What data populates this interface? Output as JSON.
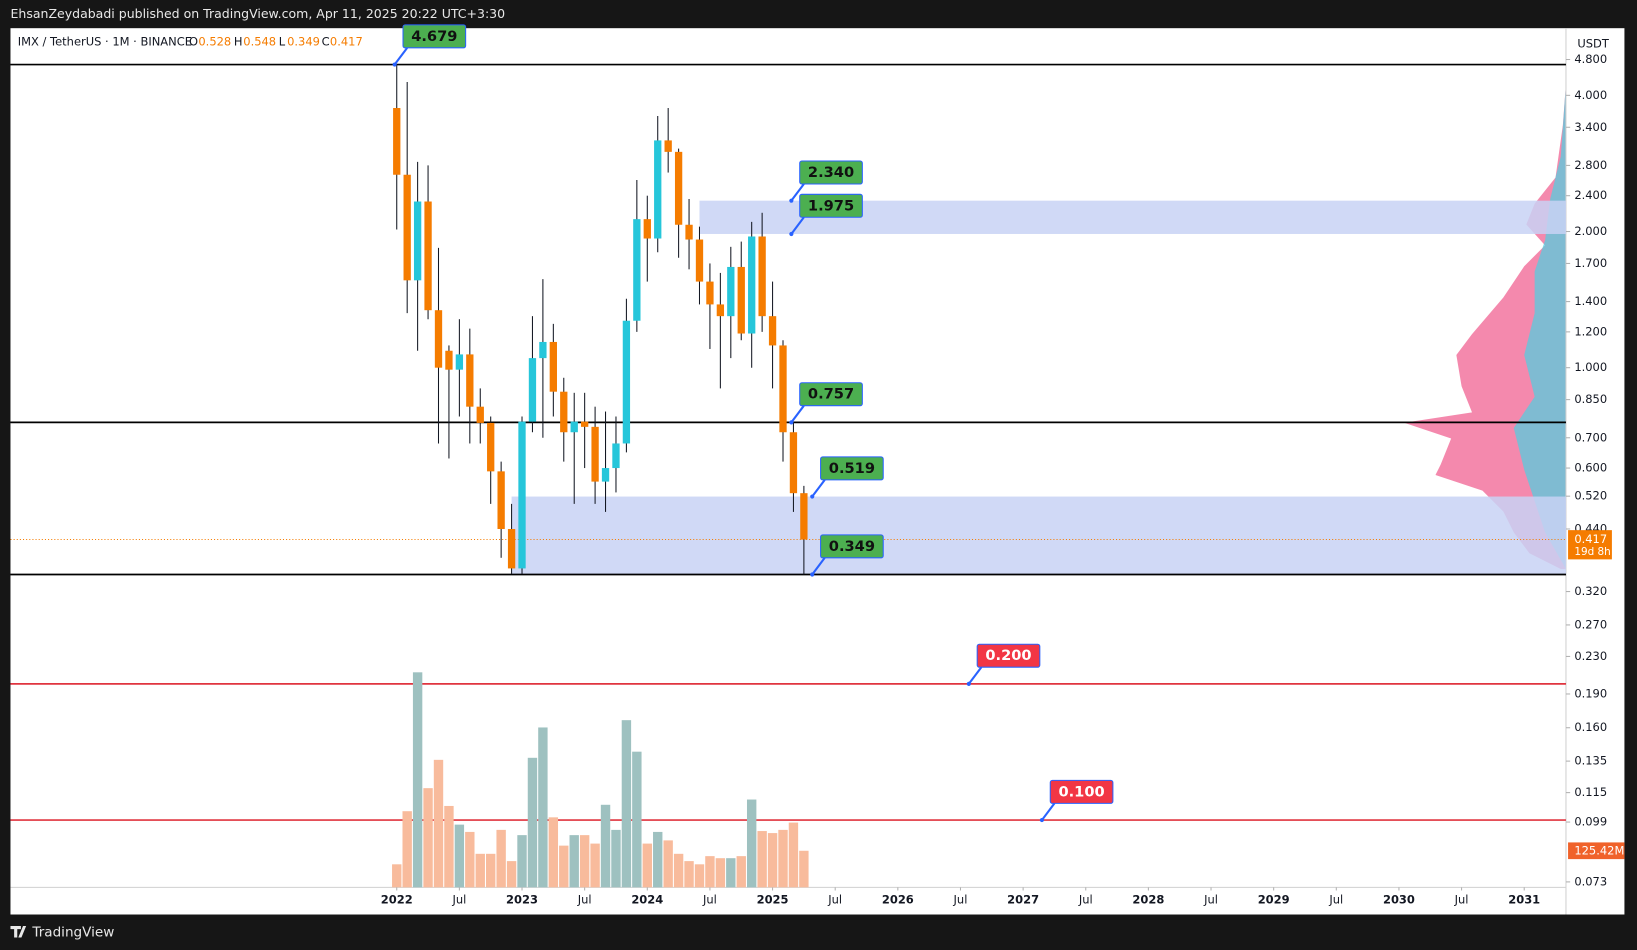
{
  "header": {
    "publisher": "EhsanZeydabadi published on TradingView.com, Apr 11, 2025 20:22 UTC+3:30"
  },
  "footer": {
    "brand": "TradingView"
  },
  "chart_data": {
    "type": "candlestick",
    "symbol": "IMX / TetherUS · 1M · BINANCE",
    "ohlc_letters": [
      "O",
      "H",
      "L",
      "C"
    ],
    "currency": "USDT",
    "countdown": "19d 8h",
    "x": [
      "2022-01",
      "2022-02",
      "2022-03",
      "2022-04",
      "2022-05",
      "2022-06",
      "2022-07",
      "2022-08",
      "2022-09",
      "2022-10",
      "2022-11",
      "2022-12",
      "2023-01",
      "2023-02",
      "2023-03",
      "2023-04",
      "2023-05",
      "2023-06",
      "2023-07",
      "2023-08",
      "2023-09",
      "2023-10",
      "2023-11",
      "2023-12",
      "2024-01",
      "2024-02",
      "2024-03",
      "2024-04",
      "2024-05",
      "2024-06",
      "2024-07",
      "2024-08",
      "2024-09",
      "2024-10",
      "2024-11",
      "2024-12",
      "2025-01",
      "2025-02",
      "2025-03",
      "2025-04"
    ],
    "open": [
      3.75,
      2.67,
      1.56,
      2.33,
      1.34,
      1.09,
      0.99,
      1.07,
      0.82,
      0.755,
      0.59,
      0.44,
      0.36,
      0.76,
      1.05,
      1.14,
      0.885,
      0.72,
      0.76,
      0.74,
      0.56,
      0.6,
      0.68,
      1.27,
      2.13,
      1.93,
      3.18,
      3.0,
      2.07,
      1.92,
      1.55,
      1.38,
      1.3,
      1.67,
      1.19,
      1.95,
      1.3,
      1.12,
      0.72,
      0.528
    ],
    "high": [
      4.679,
      4.28,
      2.85,
      2.8,
      1.84,
      1.12,
      1.28,
      1.22,
      0.9,
      0.78,
      0.62,
      0.5,
      0.78,
      1.3,
      1.57,
      1.25,
      0.95,
      0.88,
      0.88,
      0.82,
      0.8,
      0.78,
      1.42,
      2.6,
      2.4,
      3.6,
      3.75,
      3.05,
      2.36,
      2.05,
      1.7,
      1.62,
      1.85,
      1.9,
      2.1,
      2.2,
      1.55,
      1.15,
      0.757,
      0.548
    ],
    "low": [
      2.02,
      1.32,
      1.09,
      1.28,
      0.68,
      0.63,
      0.78,
      0.68,
      0.68,
      0.5,
      0.38,
      0.35,
      0.35,
      0.72,
      0.7,
      0.78,
      0.62,
      0.5,
      0.6,
      0.5,
      0.48,
      0.53,
      0.65,
      1.2,
      1.55,
      1.8,
      2.7,
      1.75,
      1.65,
      1.38,
      1.1,
      0.9,
      1.05,
      1.15,
      1.0,
      1.2,
      0.9,
      0.62,
      0.48,
      0.349
    ],
    "close": [
      2.67,
      1.56,
      2.33,
      1.34,
      1.0,
      0.99,
      1.07,
      0.82,
      0.755,
      0.59,
      0.44,
      0.36,
      0.76,
      1.05,
      1.14,
      0.885,
      0.72,
      0.76,
      0.74,
      0.56,
      0.6,
      0.68,
      1.27,
      2.13,
      1.93,
      3.18,
      3.0,
      2.07,
      1.92,
      1.55,
      1.38,
      1.3,
      1.67,
      1.19,
      1.95,
      1.3,
      1.12,
      0.72,
      0.528,
      0.417
    ],
    "volume": [
      79,
      261,
      737,
      340,
      437,
      279,
      215,
      190,
      115,
      115,
      197,
      90,
      179,
      444,
      548,
      240,
      143,
      179,
      179,
      150,
      283,
      197,
      573,
      465,
      150,
      190,
      161,
      115,
      90,
      79,
      107,
      100,
      100,
      107,
      301,
      193,
      186,
      197,
      222,
      125.42
    ],
    "volume_label": "125.42M",
    "up_color": "#26c6da",
    "down_color": "#f57c00",
    "volume_up_color": "#9ec1c0",
    "volume_down_color": "#f8bb9c",
    "log_scale": true,
    "xlim": [
      "2018-12",
      "2031-05"
    ],
    "xticks": [
      {
        "value": "2022-01",
        "label": "2022"
      },
      {
        "value": "2022-07",
        "label": "Jul"
      },
      {
        "value": "2023-01",
        "label": "2023"
      },
      {
        "value": "2023-07",
        "label": "Jul"
      },
      {
        "value": "2024-01",
        "label": "2024"
      },
      {
        "value": "2024-07",
        "label": "Jul"
      },
      {
        "value": "2025-01",
        "label": "2025"
      },
      {
        "value": "2025-07",
        "label": "Jul"
      },
      {
        "value": "2026-01",
        "label": "2026"
      },
      {
        "value": "2026-07",
        "label": "Jul"
      },
      {
        "value": "2027-01",
        "label": "2027"
      },
      {
        "value": "2027-07",
        "label": "Jul"
      },
      {
        "value": "2028-01",
        "label": "2028"
      },
      {
        "value": "2028-07",
        "label": "Jul"
      },
      {
        "value": "2029-01",
        "label": "2029"
      },
      {
        "value": "2029-07",
        "label": "Jul"
      },
      {
        "value": "2030-01",
        "label": "2030"
      },
      {
        "value": "2030-07",
        "label": "Jul"
      },
      {
        "value": "2031-01",
        "label": "2031"
      }
    ],
    "ylim": [
      0.071,
      5.6
    ],
    "yticks": [
      {
        "value": 4.8,
        "label": "4.800"
      },
      {
        "value": 4,
        "label": "4.000"
      },
      {
        "value": 3.4,
        "label": "3.400"
      },
      {
        "value": 2.8,
        "label": "2.800"
      },
      {
        "value": 2.4,
        "label": "2.400"
      },
      {
        "value": 2,
        "label": "2.000"
      },
      {
        "value": 1.7,
        "label": "1.700"
      },
      {
        "value": 1.4,
        "label": "1.400"
      },
      {
        "value": 1.2,
        "label": "1.200"
      },
      {
        "value": 1,
        "label": "1.000"
      },
      {
        "value": 0.85,
        "label": "0.850"
      },
      {
        "value": 0.7,
        "label": "0.700"
      },
      {
        "value": 0.6,
        "label": "0.600"
      },
      {
        "value": 0.52,
        "label": "0.520"
      },
      {
        "value": 0.44,
        "label": "0.440"
      },
      {
        "value": 0.32,
        "label": "0.320"
      },
      {
        "value": 0.27,
        "label": "0.270"
      },
      {
        "value": 0.23,
        "label": "0.230"
      },
      {
        "value": 0.19,
        "label": "0.190"
      },
      {
        "value": 0.16,
        "label": "0.160"
      },
      0.135,
      0.115,
      0.099,
      0.073
    ],
    "levels": [
      {
        "value": 4.679,
        "label": "4.679",
        "color": "#4caf50",
        "line": "#000000"
      },
      {
        "value": 2.34,
        "label": "2.340",
        "color": "#4caf50"
      },
      {
        "value": 1.975,
        "label": "1.975",
        "color": "#4caf50"
      },
      {
        "value": 0.757,
        "label": "0.757",
        "color": "#4caf50",
        "line": "#000000"
      },
      {
        "value": 0.519,
        "label": "0.519",
        "color": "#4caf50"
      },
      {
        "value": 0.349,
        "label": "0.349",
        "color": "#4caf50",
        "line": "#000000"
      },
      {
        "value": 0.2,
        "label": "0.200",
        "color": "#f23645",
        "line": "#e0343f"
      },
      {
        "value": 0.1,
        "label": "0.100",
        "color": "#f23645",
        "line": "#e0343f"
      }
    ],
    "zones": [
      {
        "from": "2024-06",
        "low": 1.975,
        "high": 2.34,
        "color": "#c8d2f4"
      },
      {
        "from": "2022-12",
        "low": 0.349,
        "high": 0.519,
        "color": "#c8d2f4"
      }
    ]
  }
}
